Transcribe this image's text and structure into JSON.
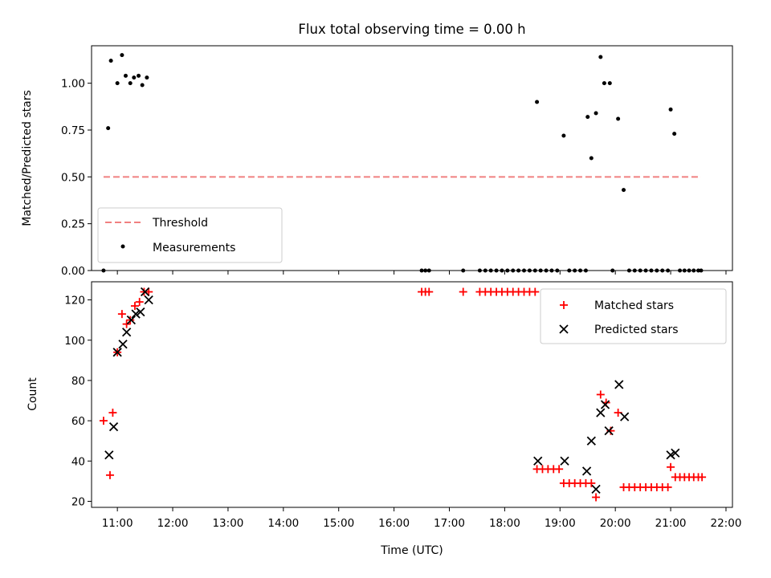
{
  "chart_data": [
    {
      "type": "scatter",
      "title": "Flux total observing time = 0.00 h",
      "xlabel": "",
      "ylabel": "Matched/Predicted stars",
      "xlim": [
        "10:32",
        "22:07"
      ],
      "ylim": [
        0,
        1.2
      ],
      "y_ticks": [
        0.0,
        0.25,
        0.5,
        0.75,
        1.0
      ],
      "y_tick_labels": [
        "0.00",
        "0.25",
        "0.50",
        "0.75",
        "1.00"
      ],
      "grid": false,
      "legend_position": "lower-left",
      "threshold": {
        "name": "Threshold",
        "color": "#f08080",
        "y": 0.5,
        "x_start": "10:45",
        "x_end": "21:33"
      },
      "series": [
        {
          "name": "Measurements",
          "color": "#000000",
          "marker": "dot",
          "points": [
            [
              "10:45",
              0.0
            ],
            [
              "10:50",
              0.76
            ],
            [
              "10:53",
              1.12
            ],
            [
              "11:00",
              1.0
            ],
            [
              "11:05",
              1.15
            ],
            [
              "11:09",
              1.04
            ],
            [
              "11:14",
              1.0
            ],
            [
              "11:18",
              1.03
            ],
            [
              "11:23",
              1.04
            ],
            [
              "11:27",
              0.99
            ],
            [
              "11:32",
              1.03
            ],
            [
              "16:30",
              0.0
            ],
            [
              "16:34",
              0.0
            ],
            [
              "16:38",
              0.0
            ],
            [
              "17:15",
              0.0
            ],
            [
              "17:33",
              0.0
            ],
            [
              "17:39",
              0.0
            ],
            [
              "17:45",
              0.0
            ],
            [
              "17:51",
              0.0
            ],
            [
              "17:57",
              0.0
            ],
            [
              "18:03",
              0.0
            ],
            [
              "18:09",
              0.0
            ],
            [
              "18:15",
              0.0
            ],
            [
              "18:21",
              0.0
            ],
            [
              "18:27",
              0.0
            ],
            [
              "18:33",
              0.0
            ],
            [
              "18:35",
              0.9
            ],
            [
              "18:39",
              0.0
            ],
            [
              "18:45",
              0.0
            ],
            [
              "18:51",
              0.0
            ],
            [
              "18:57",
              0.0
            ],
            [
              "19:04",
              0.72
            ],
            [
              "19:10",
              0.0
            ],
            [
              "19:16",
              0.0
            ],
            [
              "19:22",
              0.0
            ],
            [
              "19:28",
              0.0
            ],
            [
              "19:30",
              0.82
            ],
            [
              "19:34",
              0.6
            ],
            [
              "19:39",
              0.84
            ],
            [
              "19:44",
              1.14
            ],
            [
              "19:48",
              1.0
            ],
            [
              "19:54",
              1.0
            ],
            [
              "19:57",
              0.0
            ],
            [
              "20:03",
              0.81
            ],
            [
              "20:09",
              0.43
            ],
            [
              "20:15",
              0.0
            ],
            [
              "20:21",
              0.0
            ],
            [
              "20:27",
              0.0
            ],
            [
              "20:33",
              0.0
            ],
            [
              "20:39",
              0.0
            ],
            [
              "20:45",
              0.0
            ],
            [
              "20:51",
              0.0
            ],
            [
              "20:57",
              0.0
            ],
            [
              "21:00",
              0.86
            ],
            [
              "21:04",
              0.73
            ],
            [
              "21:10",
              0.0
            ],
            [
              "21:15",
              0.0
            ],
            [
              "21:20",
              0.0
            ],
            [
              "21:25",
              0.0
            ],
            [
              "21:30",
              0.0
            ],
            [
              "21:33",
              0.0
            ]
          ]
        }
      ]
    },
    {
      "type": "scatter",
      "title": "",
      "xlabel": "Time (UTC)",
      "ylabel": "Count",
      "xlim": [
        "10:32",
        "22:07"
      ],
      "ylim": [
        17,
        129
      ],
      "x_ticks": [
        "11:00",
        "12:00",
        "13:00",
        "14:00",
        "15:00",
        "16:00",
        "17:00",
        "18:00",
        "19:00",
        "20:00",
        "21:00",
        "22:00"
      ],
      "y_ticks": [
        20,
        40,
        60,
        80,
        100,
        120
      ],
      "grid": false,
      "legend_position": "upper-right",
      "series": [
        {
          "name": "Matched stars",
          "color": "#ff0000",
          "marker": "plus",
          "points": [
            [
              "10:45",
              60
            ],
            [
              "10:52",
              33
            ],
            [
              "10:55",
              64
            ],
            [
              "11:00",
              94
            ],
            [
              "11:05",
              113
            ],
            [
              "11:10",
              108
            ],
            [
              "11:14",
              110
            ],
            [
              "11:19",
              117
            ],
            [
              "11:24",
              119
            ],
            [
              "11:29",
              124
            ],
            [
              "11:34",
              124
            ],
            [
              "16:30",
              124
            ],
            [
              "16:34",
              124
            ],
            [
              "16:38",
              124
            ],
            [
              "17:15",
              124
            ],
            [
              "17:33",
              124
            ],
            [
              "17:39",
              124
            ],
            [
              "17:45",
              124
            ],
            [
              "17:51",
              124
            ],
            [
              "17:57",
              124
            ],
            [
              "18:03",
              124
            ],
            [
              "18:09",
              124
            ],
            [
              "18:15",
              124
            ],
            [
              "18:21",
              124
            ],
            [
              "18:27",
              124
            ],
            [
              "18:33",
              124
            ],
            [
              "18:35",
              36
            ],
            [
              "18:41",
              36
            ],
            [
              "18:47",
              36
            ],
            [
              "18:53",
              36
            ],
            [
              "18:59",
              36
            ],
            [
              "19:04",
              29
            ],
            [
              "19:10",
              29
            ],
            [
              "19:16",
              29
            ],
            [
              "19:22",
              29
            ],
            [
              "19:28",
              29
            ],
            [
              "19:34",
              29
            ],
            [
              "19:39",
              22
            ],
            [
              "19:44",
              73
            ],
            [
              "19:50",
              69
            ],
            [
              "19:55",
              55
            ],
            [
              "20:03",
              64
            ],
            [
              "20:09",
              27
            ],
            [
              "20:15",
              27
            ],
            [
              "20:21",
              27
            ],
            [
              "20:27",
              27
            ],
            [
              "20:33",
              27
            ],
            [
              "20:39",
              27
            ],
            [
              "20:45",
              27
            ],
            [
              "20:51",
              27
            ],
            [
              "20:57",
              27
            ],
            [
              "21:00",
              37
            ],
            [
              "21:05",
              32
            ],
            [
              "21:10",
              32
            ],
            [
              "21:15",
              32
            ],
            [
              "21:20",
              32
            ],
            [
              "21:25",
              32
            ],
            [
              "21:30",
              32
            ],
            [
              "21:34",
              32
            ]
          ]
        },
        {
          "name": "Predicted stars",
          "color": "#000000",
          "marker": "x",
          "points": [
            [
              "10:51",
              43
            ],
            [
              "10:56",
              57
            ],
            [
              "11:00",
              94
            ],
            [
              "11:06",
              98
            ],
            [
              "11:10",
              104
            ],
            [
              "11:15",
              110
            ],
            [
              "11:20",
              113
            ],
            [
              "11:25",
              114
            ],
            [
              "11:30",
              124
            ],
            [
              "11:34",
              120
            ],
            [
              "18:36",
              40
            ],
            [
              "19:05",
              40
            ],
            [
              "19:29",
              35
            ],
            [
              "19:34",
              50
            ],
            [
              "19:39",
              26
            ],
            [
              "19:44",
              64
            ],
            [
              "19:49",
              68
            ],
            [
              "19:53",
              55
            ],
            [
              "20:04",
              78
            ],
            [
              "20:10",
              62
            ],
            [
              "21:00",
              43
            ],
            [
              "21:05",
              44
            ]
          ]
        }
      ]
    }
  ]
}
